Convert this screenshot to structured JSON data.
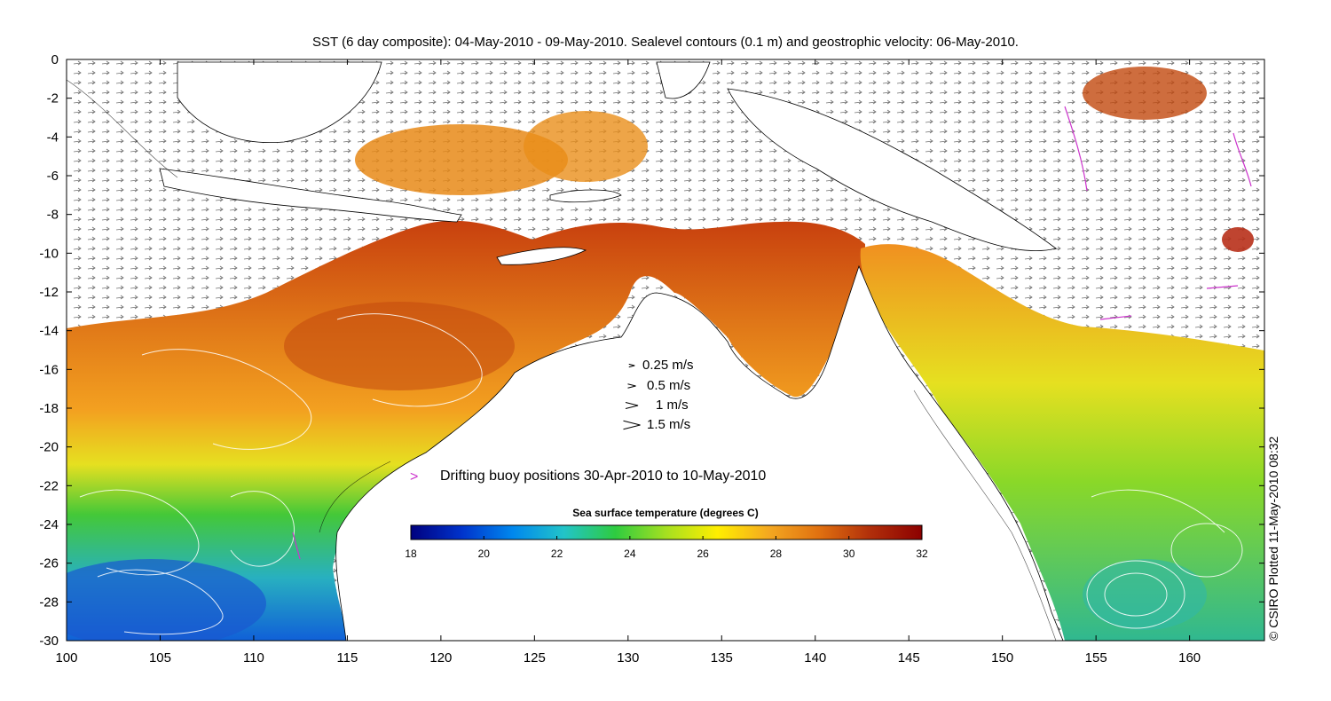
{
  "title": "SST (6 day composite): 04-May-2010 - 09-May-2010. Sealevel contours (0.1 m) and geostrophic velocity: 06-May-2010.",
  "credit": "© CSIRO Plotted 11-May-2010 08:32",
  "axes": {
    "x_ticks": [
      "100",
      "105",
      "110",
      "115",
      "120",
      "125",
      "130",
      "135",
      "140",
      "145",
      "150",
      "155",
      "160"
    ],
    "y_ticks": [
      "0",
      "-2",
      "-4",
      "-6",
      "-8",
      "-10",
      "-12",
      "-14",
      "-16",
      "-18",
      "-20",
      "-22",
      "-24",
      "-26",
      "-28",
      "-30"
    ],
    "lon_range": [
      100,
      164
    ],
    "lat_range": [
      -30,
      0
    ]
  },
  "velocity_legend": [
    {
      "label": "0.25 m/s",
      "speed": 0.25
    },
    {
      "label": "0.5 m/s",
      "speed": 0.5
    },
    {
      "label": "1 m/s",
      "speed": 1
    },
    {
      "label": "1.5 m/s",
      "speed": 1.5
    }
  ],
  "buoy_legend": {
    "label": "Drifting buoy positions 30-Apr-2010 to 10-May-2010",
    "symbol": ">",
    "color": "#cc33cc"
  },
  "colorbar": {
    "title": "Sea surface temperature (degrees C)",
    "ticks": [
      "18",
      "20",
      "22",
      "24",
      "26",
      "28",
      "30",
      "32"
    ],
    "range": [
      18,
      32
    ],
    "colors": [
      "#00007f",
      "#0033cc",
      "#0088ee",
      "#22c4c8",
      "#2ecc40",
      "#a6e020",
      "#ffee00",
      "#f4a820",
      "#e07010",
      "#b02e0a",
      "#8c0000"
    ]
  }
}
